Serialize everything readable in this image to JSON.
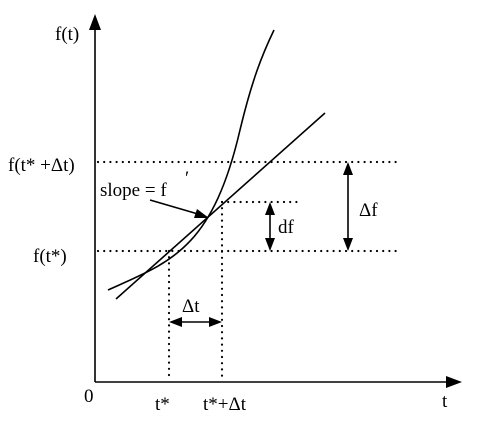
{
  "diagram": {
    "y_axis_label": "f(t)",
    "x_axis_label": "t",
    "origin_label": "0",
    "y_label_upper": "f(t* +Δt)",
    "y_label_lower": "f(t*)",
    "x_label_left": "t*",
    "x_label_right": "t*+Δt",
    "slope_label": "slope = f",
    "slope_mark": "′",
    "df_label": "df",
    "delta_f_label": "Δf",
    "delta_t_label": "Δt"
  }
}
